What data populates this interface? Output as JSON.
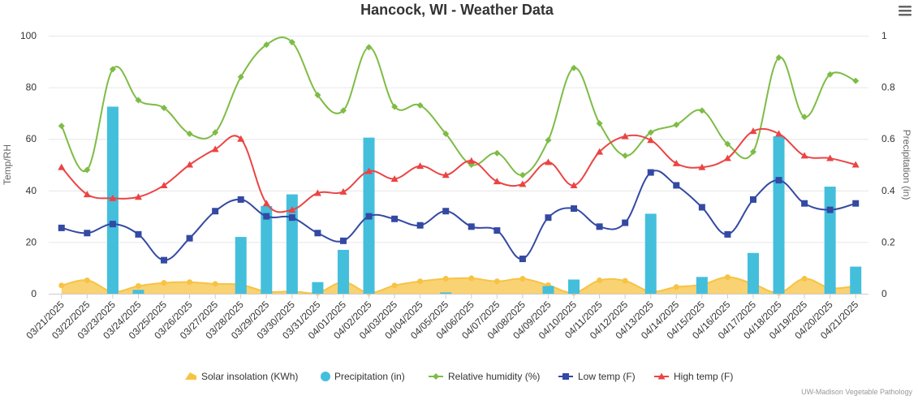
{
  "chart_data": {
    "type": "combo",
    "title": "Hancock, WI - Weather Data",
    "credits": "UW-Madison Vegetable Pathology",
    "menu_icon": "hamburger-menu-icon",
    "yaxis_left": {
      "title": "Temp/RH",
      "min": 0,
      "max": 100,
      "ticks": [
        "0",
        "20",
        "40",
        "60",
        "80",
        "100"
      ]
    },
    "yaxis_right": {
      "title": "Precipitation (in)",
      "min": 0,
      "max": 1,
      "ticks": [
        "0",
        "0.2",
        "0.4",
        "0.6",
        "0.8",
        "1"
      ]
    },
    "categories": [
      "03/21/2025",
      "03/22/2025",
      "03/23/2025",
      "03/24/2025",
      "03/25/2025",
      "03/26/2025",
      "03/27/2025",
      "03/28/2025",
      "03/29/2025",
      "03/30/2025",
      "03/31/2025",
      "04/01/2025",
      "04/02/2025",
      "04/03/2025",
      "04/04/2025",
      "04/05/2025",
      "04/06/2025",
      "04/07/2025",
      "04/08/2025",
      "04/09/2025",
      "04/10/2025",
      "04/11/2025",
      "04/12/2025",
      "04/13/2025",
      "04/14/2025",
      "04/15/2025",
      "04/16/2025",
      "04/17/2025",
      "04/18/2025",
      "04/19/2025",
      "04/20/2025",
      "04/21/2025"
    ],
    "series": [
      {
        "name": "Solar insolation (KWh)",
        "type": "area",
        "axis": "left",
        "color": "#f7c344",
        "values": [
          3.2,
          5.2,
          0.8,
          3.0,
          4.2,
          4.5,
          3.8,
          3.5,
          0.8,
          0.9,
          0.4,
          4.5,
          0.4,
          3.2,
          4.8,
          5.8,
          6.0,
          4.8,
          5.8,
          3.3,
          0.4,
          5.2,
          5.0,
          0.9,
          2.6,
          3.5,
          6.4,
          3.8,
          0.4,
          5.8,
          2.2,
          3.0
        ]
      },
      {
        "name": "Precipitation (in)",
        "type": "column",
        "axis": "right",
        "color": "#43bfdc",
        "values": [
          0,
          0,
          0.725,
          0.015,
          0,
          0,
          0,
          0.22,
          0.34,
          0.385,
          0.045,
          0.17,
          0.605,
          0,
          0,
          0.005,
          0,
          0,
          0,
          0.03,
          0.055,
          0,
          0,
          0.31,
          0,
          0.065,
          0,
          0.158,
          0.61,
          0,
          0.415,
          0.105
        ]
      },
      {
        "name": "Relative humidity (%)",
        "type": "spline",
        "axis": "left",
        "color": "#7ebc45",
        "marker": "diamond",
        "values": [
          65,
          48,
          87,
          75,
          72,
          62,
          62.5,
          84,
          96.5,
          97.5,
          77,
          71,
          95.5,
          72.5,
          73,
          62,
          50,
          54.5,
          46,
          59.5,
          87.5,
          66,
          53.5,
          62.5,
          65.5,
          71,
          58,
          55,
          91.5,
          68.5,
          85,
          82.5
        ]
      },
      {
        "name": "Low temp (F)",
        "type": "spline",
        "axis": "left",
        "color": "#3449a3",
        "marker": "square",
        "values": [
          25.5,
          23.5,
          27,
          23,
          13,
          21.5,
          32,
          36.5,
          30,
          29.5,
          23.5,
          20.5,
          30,
          29,
          26.5,
          32,
          26,
          24.5,
          13.5,
          29.5,
          33,
          26,
          27.5,
          47,
          42,
          33.5,
          23,
          36.5,
          44,
          35,
          32.5,
          35
        ]
      },
      {
        "name": "High temp (F)",
        "type": "spline",
        "axis": "left",
        "color": "#eb4444",
        "marker": "triangle",
        "values": [
          49,
          38.5,
          37,
          37.5,
          42,
          50,
          56,
          60,
          35,
          32.5,
          39,
          39.5,
          47.5,
          44.5,
          49.5,
          46,
          51.5,
          43.5,
          42.5,
          51,
          42,
          55,
          61,
          59.5,
          50.5,
          49,
          52.5,
          63,
          62,
          53.5,
          52.5,
          50
        ]
      }
    ],
    "legend_position": "bottom-center"
  }
}
